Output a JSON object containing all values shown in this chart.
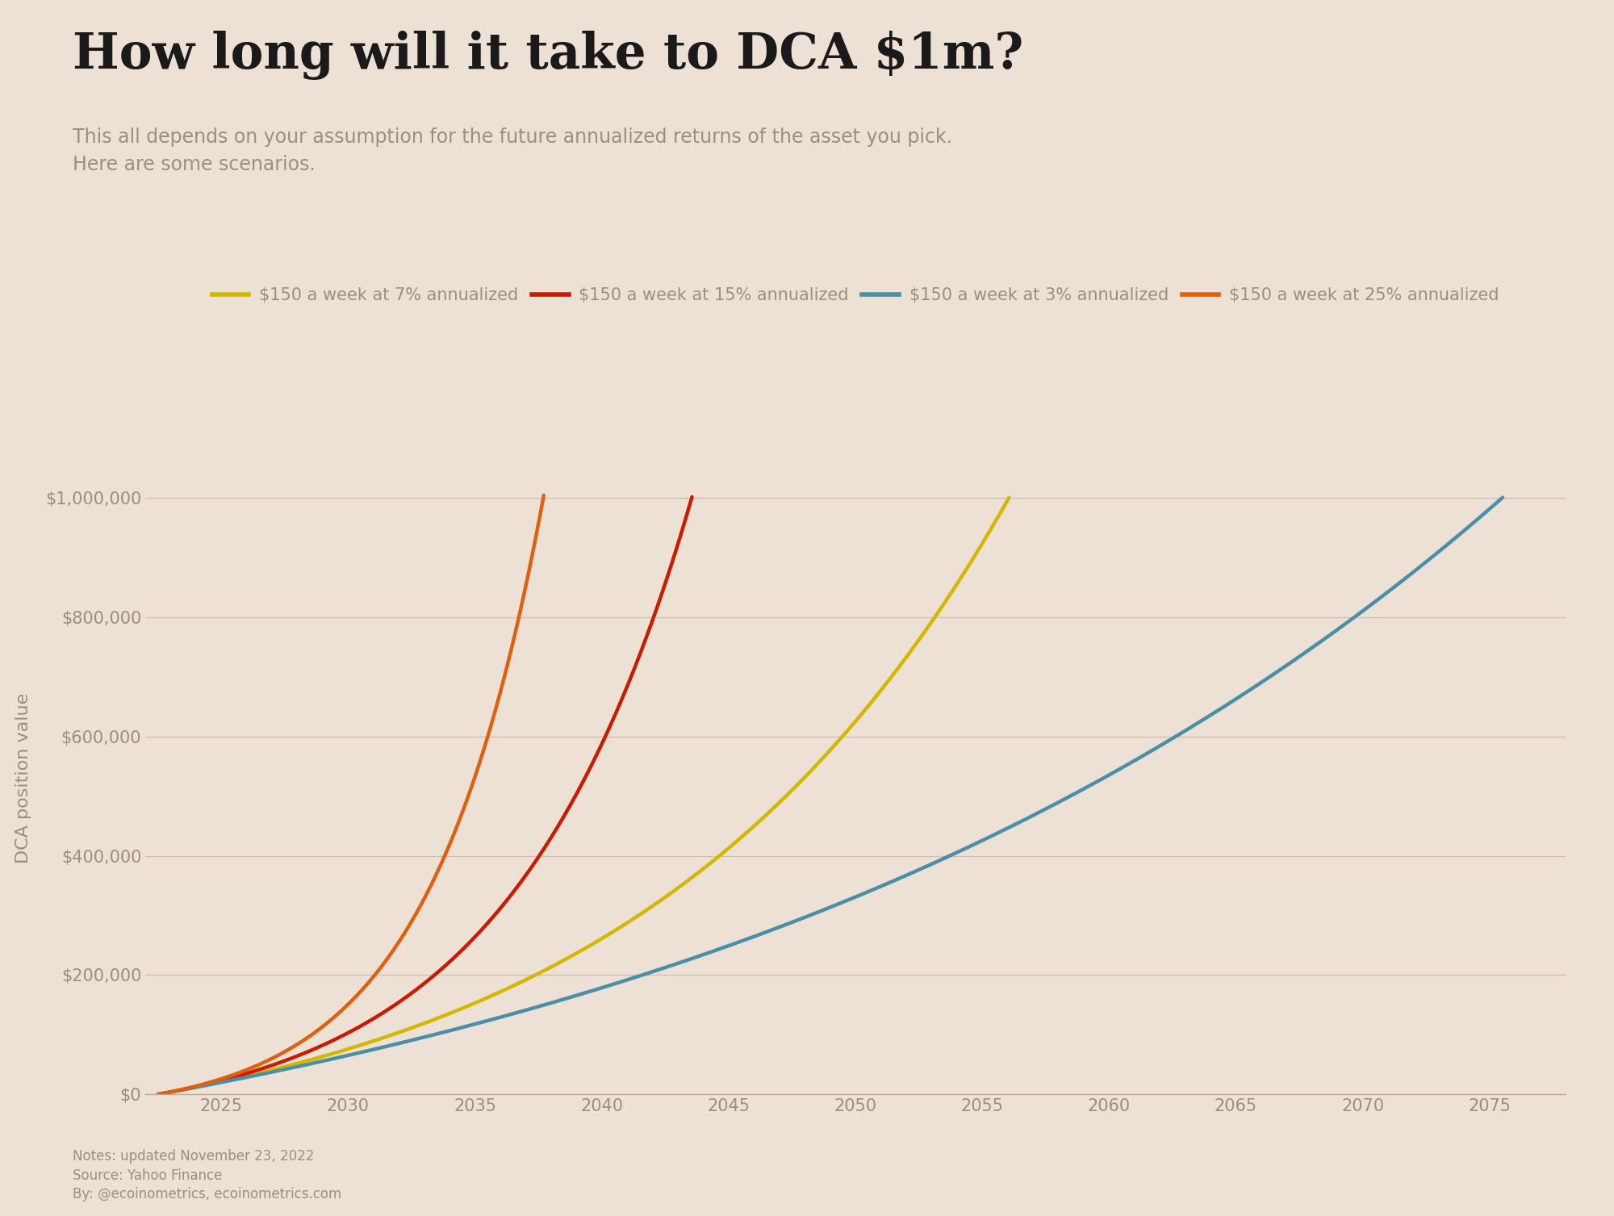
{
  "title": "How long will it take to DCA $1m?",
  "subtitle": "This all depends on your assumption for the future annualized returns of the asset you pick.\nHere are some scenarios.",
  "background_color": "#ede0d4",
  "ylabel": "DCA position value",
  "notes": "Notes: updated November 23, 2022\nSource: Yahoo Finance\nBy: @ecoinometrics, ecoinometrics.com",
  "start_year": 2022.5,
  "weekly_contribution": 150,
  "scenarios": [
    {
      "rate": 0.07,
      "label": "$150 a week at 7% annualized",
      "color": "#d4b800",
      "linestyle": "-"
    },
    {
      "rate": 0.15,
      "label": "$150 a week at 15% annualized",
      "color": "#cc1a00",
      "linestyle": "-"
    },
    {
      "rate": 0.03,
      "label": "$150 a week at 3% annualized",
      "color": "#4a8fa8",
      "linestyle": "-"
    },
    {
      "rate": 0.25,
      "label": "$150 a week at 25% annualized",
      "color": "#e06010",
      "linestyle": "-"
    }
  ],
  "ylim": [
    0,
    1060000
  ],
  "xlim": [
    2022,
    2078
  ],
  "xticks": [
    2025,
    2030,
    2035,
    2040,
    2045,
    2050,
    2055,
    2060,
    2065,
    2070,
    2075
  ],
  "yticks": [
    0,
    200000,
    400000,
    600000,
    800000,
    1000000
  ],
  "ytick_labels": [
    "$0",
    "$200,000",
    "$400,000",
    "$600,000",
    "$800,000",
    "$1,000,000"
  ],
  "grid_color": "#b8a898",
  "grid_alpha": 0.6,
  "title_fontsize": 44,
  "subtitle_fontsize": 17,
  "axis_fontsize": 15,
  "legend_fontsize": 15,
  "notes_fontsize": 12,
  "line_width": 3.2
}
